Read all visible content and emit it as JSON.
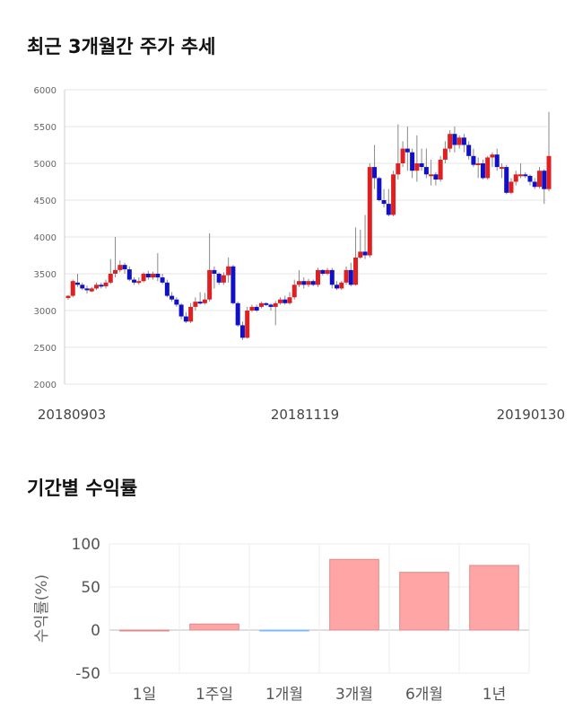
{
  "sections": {
    "price_title": "최근 3개월간 주가 추세",
    "returns_title": "기간별 수익률"
  },
  "chart_data": [
    {
      "type": "candlestick",
      "title": "최근 3개월간 주가 추세",
      "ylim": [
        2000,
        6000
      ],
      "y_ticks": [
        2000,
        2500,
        3000,
        3500,
        4000,
        4500,
        5000,
        5500,
        6000
      ],
      "x_tick_labels": [
        "20180903",
        "20181119",
        "20190130"
      ],
      "colors": {
        "up": "#e02020",
        "down": "#1010c8",
        "wick": "#888888"
      },
      "candles": [
        [
          3170,
          3200,
          3150,
          3210
        ],
        [
          3200,
          3400,
          3180,
          3420
        ],
        [
          3380,
          3350,
          3320,
          3500
        ],
        [
          3350,
          3300,
          3280,
          3380
        ],
        [
          3300,
          3280,
          3230,
          3340
        ],
        [
          3260,
          3300,
          3250,
          3320
        ],
        [
          3300,
          3350,
          3280,
          3380
        ],
        [
          3350,
          3330,
          3300,
          3380
        ],
        [
          3330,
          3380,
          3300,
          3420
        ],
        [
          3380,
          3500,
          3360,
          3700
        ],
        [
          3500,
          3550,
          3450,
          4000
        ],
        [
          3550,
          3620,
          3520,
          3680
        ],
        [
          3620,
          3560,
          3500,
          3650
        ],
        [
          3560,
          3420,
          3400,
          3600
        ],
        [
          3420,
          3380,
          3350,
          3450
        ],
        [
          3380,
          3400,
          3350,
          3450
        ],
        [
          3400,
          3500,
          3380,
          3520
        ],
        [
          3500,
          3450,
          3420,
          3540
        ],
        [
          3450,
          3500,
          3420,
          3530
        ],
        [
          3500,
          3450,
          3400,
          3780
        ],
        [
          3450,
          3380,
          3360,
          3500
        ],
        [
          3380,
          3200,
          3180,
          3420
        ],
        [
          3200,
          3150,
          3120,
          3250
        ],
        [
          3150,
          3080,
          3050,
          3180
        ],
        [
          3080,
          2920,
          2880,
          3100
        ],
        [
          2920,
          2850,
          2830,
          2980
        ],
        [
          2850,
          3050,
          2830,
          3100
        ],
        [
          3050,
          3120,
          3000,
          3180
        ],
        [
          3120,
          3100,
          3080,
          3250
        ],
        [
          3100,
          3150,
          3080,
          3240
        ],
        [
          3150,
          3550,
          3120,
          4050
        ],
        [
          3550,
          3500,
          3300,
          3600
        ],
        [
          3500,
          3380,
          3350,
          3520
        ],
        [
          3380,
          3480,
          3350,
          3520
        ],
        [
          3480,
          3600,
          3380,
          3720
        ],
        [
          3600,
          3100,
          3080,
          3620
        ],
        [
          3100,
          2800,
          2780,
          3120
        ],
        [
          2800,
          2630,
          2600,
          2850
        ],
        [
          2630,
          3000,
          2620,
          3050
        ],
        [
          3000,
          3050,
          2980,
          3080
        ],
        [
          3050,
          3000,
          2980,
          3080
        ],
        [
          3050,
          3100,
          3030,
          3120
        ],
        [
          3100,
          3080,
          3060,
          3110
        ],
        [
          3080,
          3050,
          3000,
          3100
        ],
        [
          3050,
          3100,
          2800,
          3130
        ],
        [
          3100,
          3150,
          3080,
          3180
        ],
        [
          3150,
          3100,
          3080,
          3200
        ],
        [
          3100,
          3180,
          3080,
          3250
        ],
        [
          3180,
          3350,
          3150,
          3420
        ],
        [
          3350,
          3400,
          3320,
          3550
        ],
        [
          3400,
          3350,
          3300,
          3450
        ],
        [
          3350,
          3400,
          3320,
          3430
        ],
        [
          3400,
          3350,
          3330,
          3420
        ],
        [
          3350,
          3550,
          3320,
          3580
        ],
        [
          3550,
          3500,
          3480,
          3560
        ],
        [
          3500,
          3550,
          3480,
          3580
        ],
        [
          3550,
          3350,
          3300,
          3580
        ],
        [
          3350,
          3300,
          3280,
          3400
        ],
        [
          3300,
          3380,
          3280,
          3400
        ],
        [
          3380,
          3550,
          3350,
          3600
        ],
        [
          3550,
          3350,
          3330,
          3650
        ],
        [
          3350,
          3720,
          3340,
          4130
        ],
        [
          3720,
          3800,
          3700,
          4100
        ],
        [
          3800,
          3750,
          3700,
          4300
        ],
        [
          3750,
          4950,
          3720,
          5000
        ],
        [
          4950,
          4800,
          4650,
          5250
        ],
        [
          4800,
          4500,
          4480,
          4820
        ],
        [
          4500,
          4450,
          4400,
          4650
        ],
        [
          4450,
          4300,
          4280,
          4650
        ],
        [
          4300,
          4850,
          4280,
          4900
        ],
        [
          4850,
          5000,
          4780,
          5530
        ],
        [
          5000,
          5200,
          4950,
          5300
        ],
        [
          5200,
          5150,
          4900,
          5500
        ],
        [
          5150,
          4900,
          4800,
          5200
        ],
        [
          4900,
          5000,
          4750,
          5380
        ],
        [
          5000,
          4950,
          4900,
          5200
        ],
        [
          4950,
          4850,
          4800,
          5200
        ],
        [
          4850,
          4850,
          4700,
          5050
        ],
        [
          4850,
          4780,
          4700,
          4880
        ],
        [
          4780,
          5050,
          4750,
          5100
        ],
        [
          5050,
          5200,
          5000,
          5300
        ],
        [
          5200,
          5400,
          5150,
          5450
        ],
        [
          5400,
          5250,
          5150,
          5500
        ],
        [
          5250,
          5350,
          5200,
          5380
        ],
        [
          5350,
          5250,
          5150,
          5400
        ],
        [
          5250,
          5100,
          5050,
          5300
        ],
        [
          5100,
          4980,
          4950,
          5200
        ],
        [
          4980,
          5000,
          4800,
          5080
        ],
        [
          5000,
          4800,
          4780,
          5050
        ],
        [
          4800,
          5080,
          4780,
          5100
        ],
        [
          5080,
          5120,
          4950,
          5150
        ],
        [
          5120,
          4950,
          4900,
          5200
        ],
        [
          4950,
          4950,
          4800,
          5000
        ],
        [
          4950,
          4600,
          4580,
          4980
        ],
        [
          4600,
          4750,
          4580,
          4800
        ],
        [
          4750,
          4850,
          4700,
          4900
        ],
        [
          4850,
          4850,
          4800,
          5000
        ],
        [
          4850,
          4830,
          4800,
          4880
        ],
        [
          4830,
          4750,
          4700,
          4850
        ],
        [
          4750,
          4680,
          4650,
          4800
        ],
        [
          4680,
          4900,
          4660,
          4950
        ],
        [
          4900,
          4650,
          4450,
          4920
        ],
        [
          4650,
          5100,
          4620,
          5700
        ]
      ]
    },
    {
      "type": "bar",
      "title": "기간별 수익률",
      "categories": [
        "1일",
        "1주일",
        "1개월",
        "3개월",
        "6개월",
        "1년"
      ],
      "values": [
        0,
        7,
        -1,
        82,
        67,
        75
      ],
      "ylabel": "수익률(%)",
      "ylim": [
        -50,
        100
      ],
      "y_ticks": [
        100,
        50,
        0,
        -50
      ],
      "colors": {
        "positive": "#ffa5a5",
        "negative": "#7fb7ff",
        "positive_edge": "#e08888"
      }
    }
  ]
}
